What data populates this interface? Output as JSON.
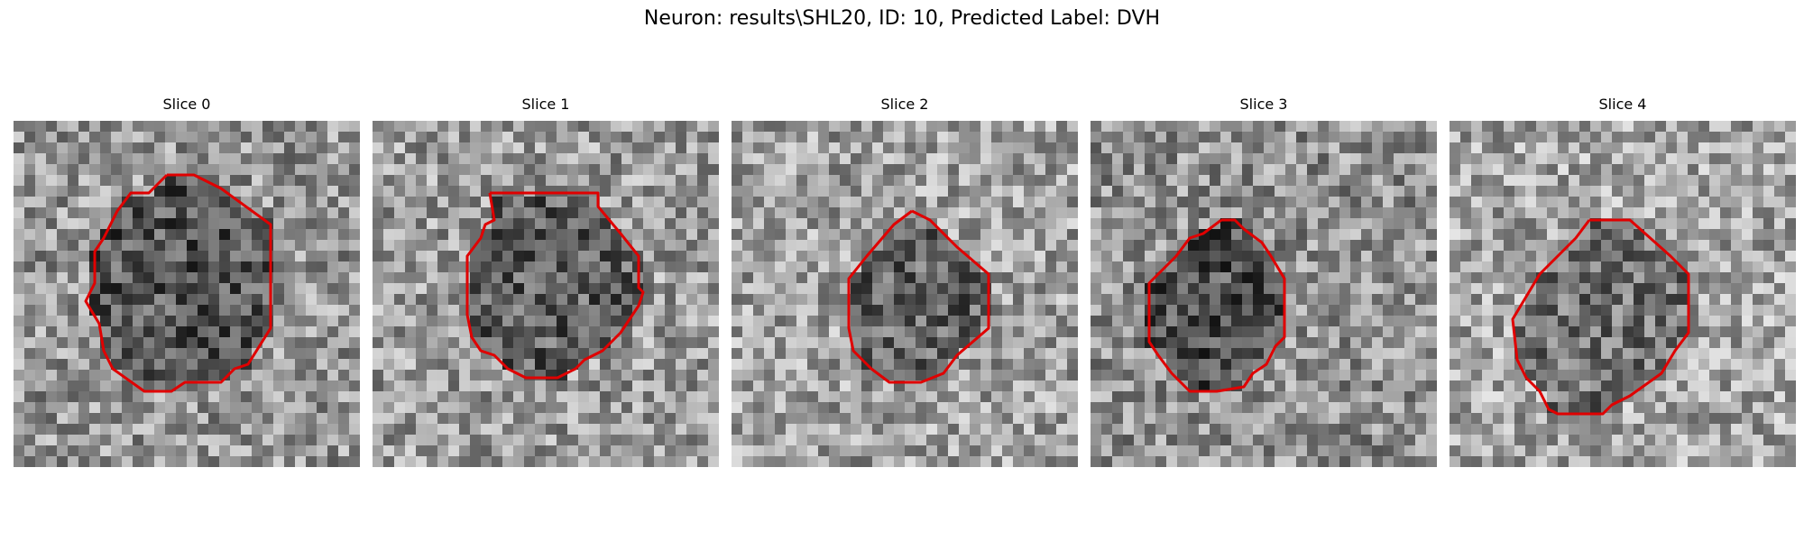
{
  "title": "Neuron: results\\SHL20, ID: 10, Predicted Label: DVH",
  "colors": {
    "contour": "#e00000"
  },
  "panels": [
    {
      "label": "Slice 0",
      "seed": 11,
      "bg_mean": 150,
      "inner_mean": 85,
      "contour": [
        [
          170,
          60
        ],
        [
          200,
          60
        ],
        [
          230,
          75
        ],
        [
          285,
          115
        ],
        [
          285,
          230
        ],
        [
          260,
          270
        ],
        [
          245,
          275
        ],
        [
          230,
          290
        ],
        [
          190,
          290
        ],
        [
          175,
          300
        ],
        [
          145,
          300
        ],
        [
          110,
          275
        ],
        [
          100,
          255
        ],
        [
          95,
          225
        ],
        [
          80,
          200
        ],
        [
          90,
          180
        ],
        [
          90,
          145
        ],
        [
          100,
          130
        ],
        [
          115,
          100
        ],
        [
          130,
          80
        ],
        [
          150,
          80
        ],
        [
          170,
          60
        ]
      ]
    },
    {
      "label": "Slice 1",
      "seed": 23,
      "bg_mean": 155,
      "inner_mean": 95,
      "contour": [
        [
          130,
          80
        ],
        [
          250,
          80
        ],
        [
          250,
          95
        ],
        [
          275,
          125
        ],
        [
          295,
          150
        ],
        [
          295,
          185
        ],
        [
          300,
          190
        ],
        [
          295,
          205
        ],
        [
          275,
          235
        ],
        [
          255,
          255
        ],
        [
          235,
          265
        ],
        [
          225,
          275
        ],
        [
          205,
          285
        ],
        [
          170,
          285
        ],
        [
          150,
          275
        ],
        [
          135,
          260
        ],
        [
          120,
          255
        ],
        [
          110,
          240
        ],
        [
          105,
          215
        ],
        [
          105,
          150
        ],
        [
          120,
          130
        ],
        [
          125,
          115
        ],
        [
          135,
          110
        ],
        [
          130,
          80
        ]
      ]
    },
    {
      "label": "Slice 2",
      "seed": 37,
      "bg_mean": 160,
      "inner_mean": 100,
      "contour": [
        [
          200,
          100
        ],
        [
          220,
          110
        ],
        [
          250,
          140
        ],
        [
          285,
          170
        ],
        [
          285,
          230
        ],
        [
          250,
          260
        ],
        [
          235,
          280
        ],
        [
          210,
          290
        ],
        [
          175,
          290
        ],
        [
          155,
          275
        ],
        [
          135,
          255
        ],
        [
          130,
          230
        ],
        [
          130,
          175
        ],
        [
          150,
          150
        ],
        [
          180,
          115
        ],
        [
          200,
          100
        ]
      ]
    },
    {
      "label": "Slice 3",
      "seed": 51,
      "bg_mean": 145,
      "inner_mean": 80,
      "contour": [
        [
          145,
          110
        ],
        [
          160,
          110
        ],
        [
          170,
          120
        ],
        [
          190,
          135
        ],
        [
          200,
          150
        ],
        [
          215,
          175
        ],
        [
          215,
          240
        ],
        [
          205,
          250
        ],
        [
          195,
          270
        ],
        [
          180,
          280
        ],
        [
          170,
          295
        ],
        [
          140,
          300
        ],
        [
          110,
          300
        ],
        [
          90,
          280
        ],
        [
          75,
          260
        ],
        [
          65,
          245
        ],
        [
          65,
          180
        ],
        [
          80,
          165
        ],
        [
          95,
          150
        ],
        [
          110,
          130
        ],
        [
          125,
          125
        ],
        [
          145,
          110
        ]
      ]
    },
    {
      "label": "Slice 4",
      "seed": 67,
      "bg_mean": 165,
      "inner_mean": 115,
      "contour": [
        [
          155,
          110
        ],
        [
          200,
          110
        ],
        [
          245,
          150
        ],
        [
          265,
          170
        ],
        [
          265,
          235
        ],
        [
          250,
          255
        ],
        [
          235,
          280
        ],
        [
          200,
          305
        ],
        [
          180,
          315
        ],
        [
          170,
          325
        ],
        [
          150,
          325
        ],
        [
          120,
          325
        ],
        [
          110,
          320
        ],
        [
          100,
          300
        ],
        [
          85,
          285
        ],
        [
          75,
          265
        ],
        [
          70,
          220
        ],
        [
          100,
          170
        ],
        [
          120,
          150
        ],
        [
          140,
          130
        ],
        [
          155,
          110
        ]
      ]
    }
  ]
}
